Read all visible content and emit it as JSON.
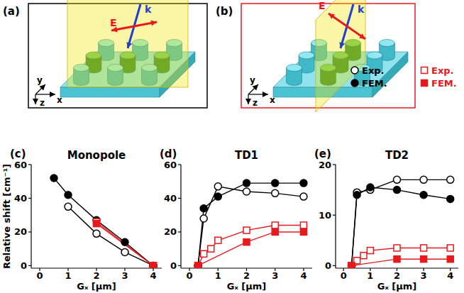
{
  "diagrams": [
    {
      "label": "(a)",
      "field": "E",
      "wavevector": "k",
      "axes": {
        "x": "x",
        "y": "y",
        "z": "z"
      }
    },
    {
      "label": "(b)",
      "field": "E",
      "wavevector": "k",
      "axes": {
        "x": "x",
        "y": "y",
        "z": "z"
      }
    }
  ],
  "chart_data": [
    {
      "type": "line",
      "title": "Monopole",
      "annotations": [
        "(c)"
      ],
      "xlabel": "Gₓ [μm]",
      "ylabel": "Relative shift [cm⁻¹]",
      "xlim": [
        -0.3,
        4.3
      ],
      "ylim": [
        -1.5,
        60
      ],
      "xticks": [
        0,
        1,
        2,
        3,
        4
      ],
      "yticks": [
        0,
        20,
        40,
        60
      ],
      "grid": false,
      "legend": "top-right",
      "series": [
        {
          "name": "Exp.",
          "color": "#000000",
          "marker": "open-circle",
          "x": [
            1,
            2,
            3,
            4
          ],
          "values": [
            35,
            19,
            8,
            0
          ]
        },
        {
          "name": "FEM.",
          "color": "#000000",
          "marker": "filled-circle",
          "x": [
            0.5,
            1,
            2,
            3,
            4
          ],
          "values": [
            52,
            42,
            27,
            14,
            0
          ]
        },
        {
          "name": "Exp.",
          "color": "#e8191c",
          "marker": "open-square",
          "x": [
            2,
            4
          ],
          "values": [
            26,
            0
          ]
        },
        {
          "name": "FEM.",
          "color": "#e8191c",
          "marker": "filled-square",
          "x": [
            2,
            4
          ],
          "values": [
            25,
            0
          ]
        }
      ]
    },
    {
      "type": "line",
      "title": "TD1",
      "annotations": [
        "(d)"
      ],
      "xlabel": "Gₓ [μm]",
      "xlim": [
        -0.3,
        4.3
      ],
      "ylim": [
        -1.5,
        60
      ],
      "xticks": [
        0,
        1,
        2,
        3,
        4
      ],
      "yticks": [
        0,
        20,
        40,
        60
      ],
      "grid": false,
      "series": [
        {
          "name": "Exp.",
          "color": "#000000",
          "marker": "open-circle",
          "x": [
            0.3,
            0.5,
            1,
            2,
            3,
            4
          ],
          "values": [
            0,
            28,
            47,
            44,
            43,
            41
          ]
        },
        {
          "name": "FEM.",
          "color": "#000000",
          "marker": "filled-circle",
          "x": [
            0.3,
            0.5,
            1,
            2,
            3,
            4
          ],
          "values": [
            0,
            34,
            41,
            49,
            49,
            49
          ]
        },
        {
          "name": "Exp.",
          "color": "#e8191c",
          "marker": "open-square",
          "x": [
            0.3,
            0.5,
            0.75,
            1,
            2,
            3,
            4
          ],
          "values": [
            0,
            7,
            10,
            15,
            21,
            24,
            24
          ]
        },
        {
          "name": "FEM.",
          "color": "#e8191c",
          "marker": "filled-square",
          "x": [
            0.3,
            2,
            3,
            4
          ],
          "values": [
            0,
            14,
            20,
            20
          ]
        }
      ]
    },
    {
      "type": "line",
      "title": "TD2",
      "annotations": [
        "(e)"
      ],
      "xlabel": "Gₓ [μm]",
      "xlim": [
        -0.3,
        4.3
      ],
      "ylim": [
        -0.5,
        20
      ],
      "xticks": [
        0,
        1,
        2,
        3,
        4
      ],
      "yticks": [
        0,
        10,
        20
      ],
      "grid": false,
      "series": [
        {
          "name": "Exp.",
          "color": "#000000",
          "marker": "open-circle",
          "x": [
            0.3,
            0.5,
            1,
            2,
            3,
            4
          ],
          "values": [
            0,
            14.5,
            15,
            17,
            17,
            17
          ]
        },
        {
          "name": "FEM.",
          "color": "#000000",
          "marker": "filled-circle",
          "x": [
            0.3,
            0.5,
            1,
            2,
            3,
            4
          ],
          "values": [
            0,
            14,
            15.5,
            15,
            14,
            13.2
          ]
        },
        {
          "name": "Exp.",
          "color": "#e8191c",
          "marker": "open-square",
          "x": [
            0.3,
            0.5,
            0.75,
            1,
            2,
            3,
            4
          ],
          "values": [
            0,
            1,
            2,
            3,
            3.5,
            3.5,
            3.5
          ]
        },
        {
          "name": "FEM.",
          "color": "#e8191c",
          "marker": "filled-square",
          "x": [
            0.3,
            2,
            3,
            4
          ],
          "values": [
            0,
            1.3,
            1.3,
            1.3
          ]
        }
      ]
    }
  ]
}
